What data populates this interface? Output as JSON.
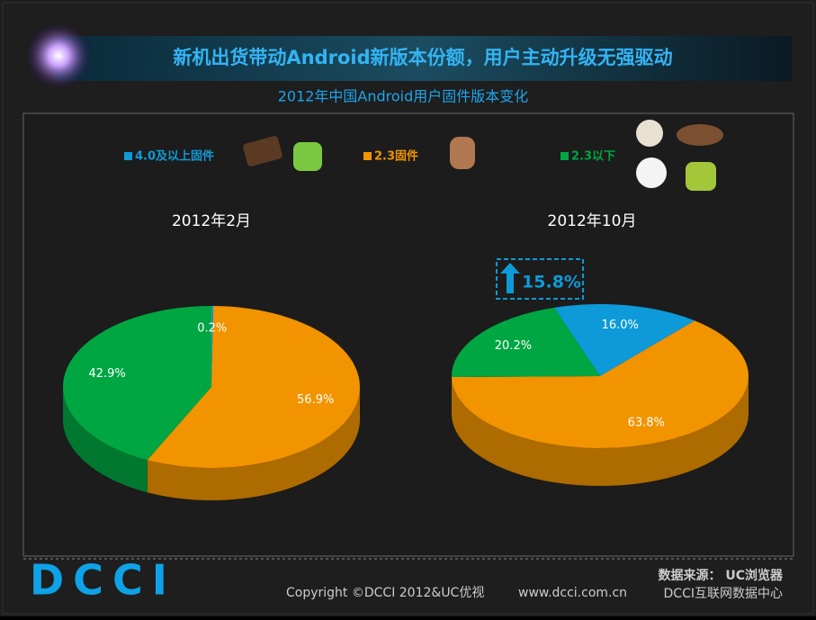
{
  "header": {
    "title": "新机出货带动Android新版本份额，用户主动升级无强驱动",
    "subtitle": "2012年中国Android用户固件版本变化"
  },
  "chart_data": [
    {
      "type": "pie",
      "title": "2012年2月",
      "categories": [
        "4.0及以上固件",
        "2.3固件",
        "2.3以下"
      ],
      "values": [
        0.2,
        56.9,
        42.9
      ],
      "value_labels": [
        "0.2%",
        "56.9%",
        "42.9%"
      ],
      "colors": [
        "#0e9ad8",
        "#f29400",
        "#00a642"
      ]
    },
    {
      "type": "pie",
      "title": "2012年10月",
      "categories": [
        "4.0及以上固件",
        "2.3固件",
        "2.3以下"
      ],
      "values": [
        16.0,
        63.8,
        20.2
      ],
      "value_labels": [
        "16.0%",
        "63.8%",
        "20.2%"
      ],
      "colors": [
        "#0e9ad8",
        "#f29400",
        "#00a642"
      ],
      "annotation": "15.8%"
    }
  ],
  "footer": {
    "logo": "DCCI",
    "copyright": "Copyright ©DCCI 2012&UC优视",
    "url": "www.dcci.com.cn",
    "source": "数据来源： UC浏览器",
    "org": "DCCI互联网数据中心"
  }
}
